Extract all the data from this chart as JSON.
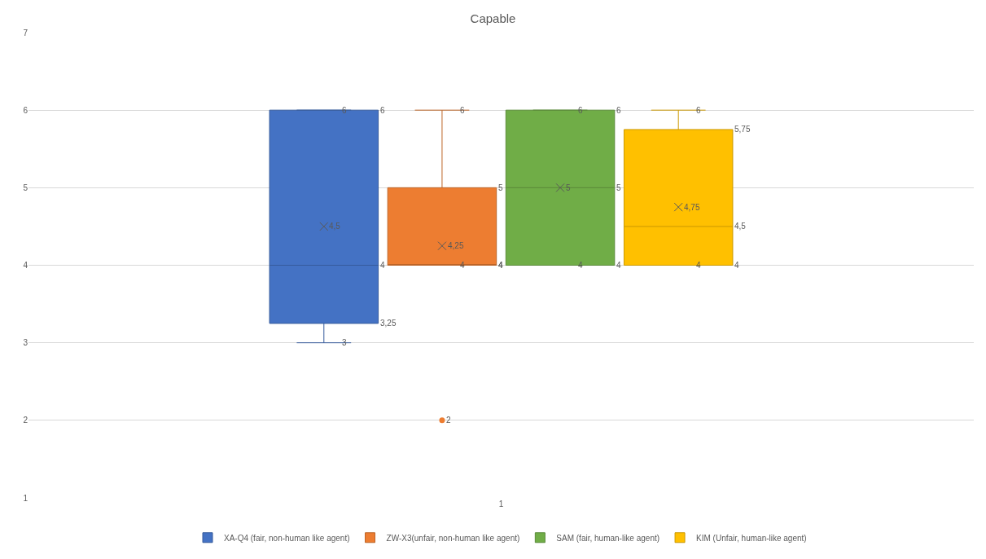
{
  "chart_data": {
    "type": "box",
    "title": "Capable",
    "categories": [
      "1"
    ],
    "series": [
      {
        "name": "XA-Q4 (fair, non-human like agent)",
        "color": "#4472c4",
        "boxes": [
          {
            "low": 3,
            "q1": 3.25,
            "median": 4,
            "q3": 6,
            "high": 6,
            "mean": 4.5
          }
        ]
      },
      {
        "name": "ZW-X3(unfair, non-human like agent)",
        "color": "#ed7d31",
        "boxes": [
          {
            "low": 4,
            "q1": 4,
            "median": 4,
            "q3": 5,
            "high": 6,
            "mean": 4.25,
            "outliers": [
              2
            ]
          }
        ]
      },
      {
        "name": "SAM (fair, human-like agent)",
        "color": "#70ad47",
        "boxes": [
          {
            "low": 4,
            "q1": 4,
            "median": 5,
            "q3": 6,
            "high": 6,
            "mean": 5
          }
        ]
      },
      {
        "name": "KIM (Unfair, human-like agent)",
        "color": "#ffc000",
        "boxes": [
          {
            "low": 4,
            "q1": 4,
            "median": 4.5,
            "q3": 5.75,
            "high": 6,
            "mean": 4.75
          }
        ]
      }
    ],
    "annotations": [
      "6",
      "6",
      "4",
      "3,25",
      "3",
      "4,5",
      "6",
      "5",
      "4",
      "4",
      "4",
      "4,25",
      "2",
      "6",
      "6",
      "5",
      "4",
      "4",
      "5",
      "6",
      "5,75",
      "4,5",
      "4",
      "4",
      "4,75"
    ],
    "ylim": [
      1,
      7
    ],
    "yticks": [
      1,
      2,
      3,
      4,
      5,
      6,
      7
    ],
    "grid": "y",
    "legend": "bottom"
  }
}
